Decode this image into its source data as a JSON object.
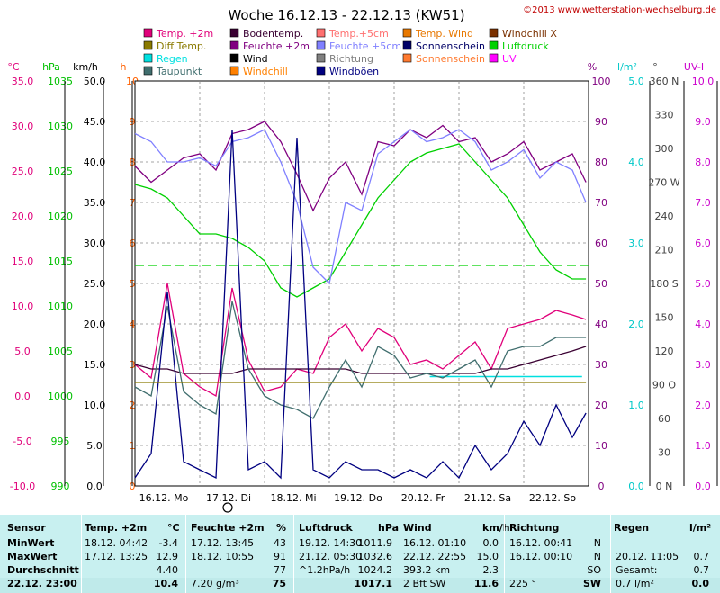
{
  "header": {
    "title": "Woche 16.12.13 - 22.12.13 (KW51)",
    "copyright": "©2013 www.wetterstation-wechselburg.de"
  },
  "legend": [
    {
      "label": "Temp. +2m",
      "color": "#e0007a"
    },
    {
      "label": "Bodentemp.",
      "color": "#3a0032"
    },
    {
      "label": "Temp.+5cm",
      "color": "#ff7070"
    },
    {
      "label": "Temp. Wind",
      "color": "#e87800"
    },
    {
      "label": "Windchill X",
      "color": "#7a3000"
    },
    {
      "label": "Diff Temp.",
      "color": "#8a7a00"
    },
    {
      "label": "Feuchte +2m",
      "color": "#800080"
    },
    {
      "label": "Feuchte +5cm",
      "color": "#8080ff"
    },
    {
      "label": "Sonnenschein",
      "color": "#000066"
    },
    {
      "label": "Luftdruck",
      "color": "#00d000"
    },
    {
      "label": "Regen",
      "color": "#00e0e0"
    },
    {
      "label": "Wind",
      "color": "#000000"
    },
    {
      "label": "Richtung",
      "color": "#808080"
    },
    {
      "label": "Sonnenschein",
      "color": "#ff7a30"
    },
    {
      "label": "UV",
      "color": "#ff00ff"
    },
    {
      "label": "Taupunkt",
      "color": "#406e6e"
    },
    {
      "label": "Windchill",
      "color": "#ff8000"
    },
    {
      "label": "Windböen",
      "color": "#000080"
    }
  ],
  "axes": [
    {
      "unit": "°C",
      "color": "#e0007a",
      "ticks": [
        "35.0",
        "30.0",
        "25.0",
        "20.0",
        "15.0",
        "10.0",
        "5.0",
        "0.0",
        "-5.0",
        "-10.0"
      ]
    },
    {
      "unit": "hPa",
      "color": "#00c000",
      "ticks": [
        "1035",
        "1030",
        "1025",
        "1020",
        "1015",
        "1010",
        "1005",
        "1000",
        "995",
        "990"
      ]
    },
    {
      "unit": "km/h",
      "color": "#000000",
      "ticks": [
        "50.0",
        "45.0",
        "40.0",
        "35.0",
        "30.0",
        "25.0",
        "20.0",
        "15.0",
        "10.0",
        "5.0",
        "0.0"
      ]
    },
    {
      "unit": "h",
      "color": "#ff6000",
      "ticks": [
        "10",
        "9",
        "8",
        "7",
        "6",
        "5",
        "4",
        "3",
        "2",
        "1",
        "0"
      ]
    },
    {
      "unit": "%",
      "color": "#800080",
      "ticks": [
        "100",
        "90",
        "80",
        "70",
        "60",
        "50",
        "40",
        "30",
        "20",
        "10",
        "0"
      ]
    },
    {
      "unit": "l/m²",
      "color": "#00c8c8",
      "ticks": [
        "5.0",
        "4.0",
        "3.0",
        "2.0",
        "1.0",
        "0.0"
      ]
    },
    {
      "unit": "°",
      "color": "#404040",
      "ticks": [
        "360 N",
        "330",
        "300",
        "270 W",
        "240",
        "210",
        "180 S",
        "150",
        "120",
        "90 O",
        "60",
        "30",
        "0 N"
      ]
    },
    {
      "unit": "UV-I",
      "color": "#cc00cc",
      "ticks": [
        "10.0",
        "9.0",
        "8.0",
        "7.0",
        "6.0",
        "5.0",
        "4.0",
        "3.0",
        "2.0",
        "1.0",
        "0.0"
      ]
    }
  ],
  "chart_data": {
    "type": "line",
    "title": "Woche 16.12.13 - 22.12.13 (KW51)",
    "x_labels": [
      "16.12.  Mo",
      "17.12.  Di",
      "18.12.  Mi",
      "19.12.  Do",
      "20.12.  Fr",
      "21.12.  Sa",
      "22.12.  So"
    ],
    "x": [
      0,
      0.25,
      0.5,
      0.75,
      1,
      1.25,
      1.5,
      1.75,
      2,
      2.25,
      2.5,
      2.75,
      3,
      3.25,
      3.5,
      3.75,
      4,
      4.25,
      4.5,
      4.75,
      5,
      5.25,
      5.5,
      5.75,
      6,
      6.25,
      6.5,
      6.75,
      6.96
    ],
    "ylim_temp": [
      -10,
      35
    ],
    "ylim_pressure": [
      990,
      1035
    ],
    "ylim_humidity": [
      0,
      100
    ],
    "series": [
      {
        "name": "Temp. +2m",
        "axis": "temp",
        "color": "#e0007a",
        "values": [
          3.5,
          2.0,
          12.5,
          2.5,
          1.0,
          0.0,
          12.0,
          4.0,
          0.5,
          1.0,
          3.0,
          2.5,
          6.5,
          8.0,
          5.0,
          7.5,
          6.5,
          3.5,
          4.0,
          3.0,
          4.5,
          6.0,
          3.0,
          7.5,
          8.0,
          8.5,
          9.5,
          9.0,
          8.5
        ]
      },
      {
        "name": "Luftdruck",
        "axis": "pressure",
        "color": "#00d000",
        "values": [
          1023.5,
          1023,
          1022,
          1020,
          1018,
          1018,
          1017.5,
          1016.5,
          1015,
          1012,
          1011,
          1012,
          1013,
          1016,
          1019,
          1022,
          1024,
          1026,
          1027,
          1027.5,
          1028,
          1026,
          1024,
          1022,
          1019,
          1016,
          1014,
          1013,
          1013
        ]
      },
      {
        "name": "Feuchte +2m",
        "axis": "humidity",
        "color": "#800080",
        "values": [
          79,
          75,
          78,
          81,
          82,
          78,
          87,
          88,
          90,
          85,
          77,
          68,
          76,
          80,
          72,
          85,
          84,
          88,
          86,
          89,
          85,
          86,
          80,
          82,
          85,
          78,
          80,
          82,
          75
        ]
      },
      {
        "name": "Feuchte +5cm",
        "axis": "humidity",
        "color": "#8080ff",
        "values": [
          87,
          85,
          80,
          80,
          81,
          79,
          85,
          86,
          88,
          80,
          70,
          54,
          50,
          70,
          68,
          82,
          85,
          88,
          85,
          86,
          88,
          85,
          78,
          80,
          83,
          76,
          80,
          78,
          70
        ]
      },
      {
        "name": "Bodentemp.",
        "axis": "temp",
        "color": "#3a0032",
        "values": [
          3.5,
          3.0,
          3.0,
          2.5,
          2.5,
          2.5,
          2.5,
          3.0,
          3.0,
          3.0,
          3.0,
          3.0,
          3.0,
          3.0,
          2.5,
          2.5,
          2.5,
          2.5,
          2.5,
          2.5,
          2.5,
          2.5,
          3.0,
          3.0,
          3.5,
          4.0,
          4.5,
          5.0,
          5.5
        ]
      },
      {
        "name": "Taupunkt",
        "axis": "temp",
        "color": "#406e6e",
        "values": [
          1.0,
          0.0,
          10.0,
          0.5,
          -1.0,
          -2.0,
          10.5,
          3.0,
          0.0,
          -1.0,
          -1.5,
          -2.5,
          1.0,
          4.0,
          1.0,
          5.5,
          4.5,
          2.0,
          2.5,
          2.0,
          3.0,
          4.0,
          1.0,
          5.0,
          5.5,
          5.5,
          6.5,
          6.5,
          6.5
        ]
      },
      {
        "name": "Windböen",
        "axis": "wind",
        "color": "#000080",
        "values": [
          1,
          4,
          24,
          3,
          2,
          1,
          44,
          2,
          3,
          1,
          43,
          2,
          1,
          3,
          2,
          2,
          1,
          2,
          1,
          3,
          1,
          5,
          2,
          4,
          8,
          5,
          10,
          6,
          9
        ]
      },
      {
        "name": "Diff Temp.",
        "axis": "temp",
        "color": "#8a7a00",
        "values": [
          1.5,
          1.5,
          1.5,
          1.5,
          1.5,
          1.5,
          1.5,
          1.5,
          1.5,
          1.5,
          1.5,
          1.5,
          1.5,
          1.5,
          1.5,
          1.5,
          1.5,
          1.5,
          1.5,
          1.5,
          1.5,
          1.5,
          1.5,
          1.5,
          1.5,
          1.5,
          1.5,
          1.5,
          1.5
        ]
      }
    ],
    "reference_lines": [
      {
        "name": "Luftdruck mean",
        "value_pressure": 1014.5,
        "color": "#00d000"
      },
      {
        "name": "Regen",
        "value_rain": 1.35,
        "color": "#00e0e0",
        "from_x": 4.55,
        "to_x": 6.9
      }
    ]
  },
  "stats": {
    "headers": [
      "Sensor",
      "Temp. +2m",
      "°C",
      "Feuchte +2m",
      "%",
      "Luftdruck",
      "hPa",
      "Wind",
      "km/h",
      "Richtung",
      "",
      "Regen",
      "l/m²"
    ],
    "rows": [
      {
        "label": "MinWert",
        "temp_time": "18.12.  04:42",
        "temp": "-3.4",
        "hum_time": "17.12.  13:45",
        "hum": "43",
        "pres_time": "19.12.  14:30",
        "pres": "1011.9",
        "wind_time": "16.12.  01:10",
        "wind": "0.0",
        "dir_time": "16.12.  00:41",
        "dir": "N",
        "rain_time": "",
        "rain": ""
      },
      {
        "label": "MaxWert",
        "temp_time": "17.12.  13:25",
        "temp": "12.9",
        "hum_time": "18.12.  10:55",
        "hum": "91",
        "pres_time": "21.12.  05:30",
        "pres": "1032.6",
        "wind_time": "22.12.  22:55",
        "wind": "15.0",
        "dir_time": "16.12.  00:10",
        "dir": "N",
        "rain_time": "20.12.  11:05",
        "rain": "0.7"
      },
      {
        "label": "Durchschnitt",
        "temp_time": "",
        "temp": "4.40",
        "hum_time": "",
        "hum": "77",
        "pres_time": "^1.2hPa/h",
        "pres": "1024.2",
        "wind_time": "393.2 km",
        "wind": "2.3",
        "dir_time": "",
        "dir": "SO",
        "rain_time": "Gesamt:",
        "rain": "0.7"
      },
      {
        "label": "22.12.  23:00",
        "temp_time": "",
        "temp": "10.4",
        "hum_time": "7.20 g/m³",
        "hum": "75",
        "pres_time": "",
        "pres": "1017.1",
        "wind_time": "2 Bft SW",
        "wind": "11.6",
        "dir_time": "225 °",
        "dir": "SW",
        "rain_time": "0.7 l/m²",
        "rain": "0.0"
      }
    ]
  }
}
